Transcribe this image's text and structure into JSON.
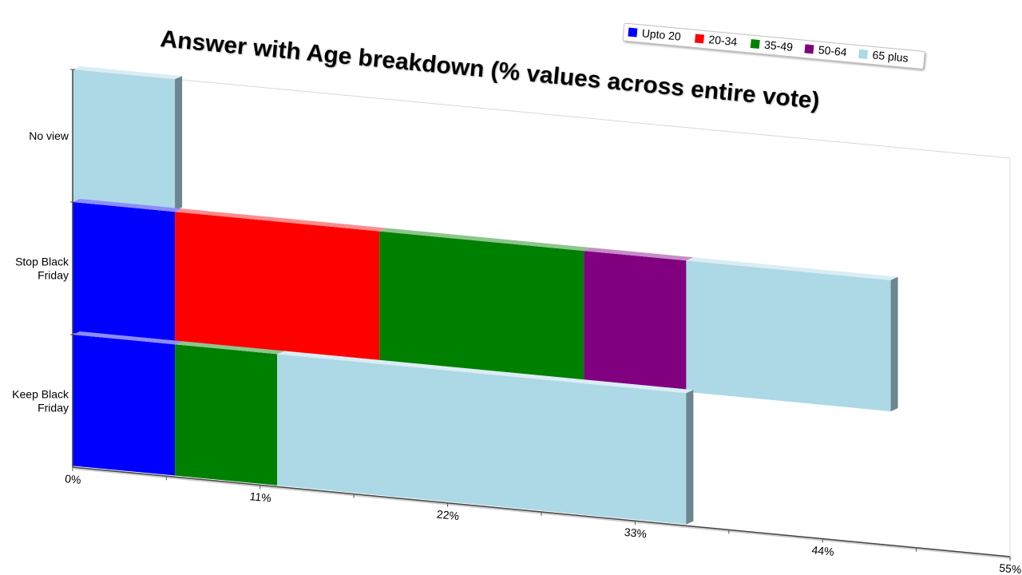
{
  "chart_data": {
    "type": "bar",
    "orientation": "horizontal",
    "stacked": true,
    "title": "Answer with Age breakdown (% values across entire vote)",
    "categories": [
      {
        "label_lines": [
          "No view"
        ],
        "label": "No view"
      },
      {
        "label_lines": [
          "Stop Black",
          "Friday"
        ],
        "label": "Stop Black Friday"
      },
      {
        "label_lines": [
          "Keep Black",
          "Friday"
        ],
        "label": "Keep Black Friday"
      }
    ],
    "series": [
      {
        "name": "Upto 20",
        "color": "#0000ff",
        "values": [
          0,
          6.0,
          6.0
        ]
      },
      {
        "name": "20-34",
        "color": "#ff0000",
        "values": [
          0,
          12.0,
          0
        ]
      },
      {
        "name": "35-49",
        "color": "#008000",
        "values": [
          0,
          12.0,
          6.0
        ]
      },
      {
        "name": "50-64",
        "color": "#800080",
        "values": [
          0,
          6.0,
          0
        ]
      },
      {
        "name": "65 plus",
        "color": "#add8e6",
        "values": [
          6.0,
          12.0,
          24.0
        ]
      }
    ],
    "xaxis": {
      "ticks": [
        "0%",
        "11%",
        "22%",
        "33%",
        "44%",
        "55%"
      ],
      "tick_values": [
        0,
        11,
        22,
        33,
        44,
        55
      ],
      "xlim": [
        0,
        55
      ]
    },
    "legend": "top-right",
    "grid": false,
    "effect_3d": true
  }
}
